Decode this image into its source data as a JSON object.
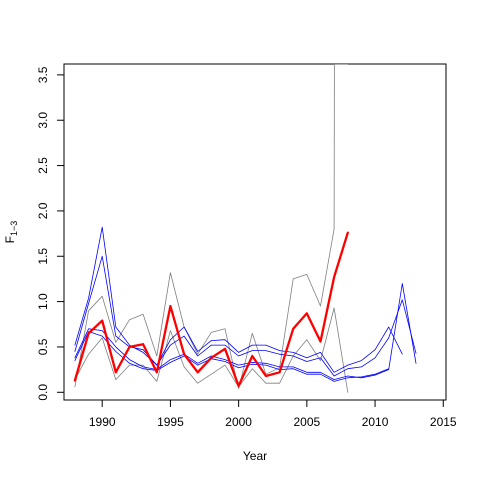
{
  "chart_data": {
    "type": "line",
    "xlabel": "Year",
    "ylabel_main": "F",
    "ylabel_sub": "1−3",
    "xlim": [
      1987.2,
      2015.2
    ],
    "ylim": [
      -0.085,
      3.62
    ],
    "xticks": [
      "1990",
      "1995",
      "2000",
      "2005",
      "2010",
      "2015"
    ],
    "xtick_values": [
      1990,
      1995,
      2000,
      2005,
      2010,
      2015
    ],
    "yticks": [
      "0.0",
      "0.5",
      "1.0",
      "1.5",
      "2.0",
      "2.5",
      "3.0",
      "3.5"
    ],
    "ytick_values": [
      0,
      0.5,
      1,
      1.5,
      2,
      2.5,
      3,
      3.5
    ],
    "colors": {
      "gray": "#7f7f7f",
      "blue": "#0000ff",
      "red": "#ff0000"
    },
    "series": [
      {
        "color": "gray",
        "width": 0.8,
        "x": [
          1988,
          1989,
          1990,
          1991,
          1992,
          1993,
          1994,
          1995,
          1996,
          1997,
          1998,
          1999,
          2000,
          2001,
          2002,
          2003,
          2004,
          2005,
          2006,
          2007,
          2007.02,
          2008
        ],
        "y": [
          0.06,
          0.9,
          1.06,
          0.55,
          0.8,
          0.86,
          0.4,
          1.32,
          0.72,
          0.42,
          0.66,
          0.7,
          0.04,
          0.65,
          0.2,
          0.27,
          1.25,
          1.3,
          0.95,
          1.8,
          3.62,
          3.62
        ]
      },
      {
        "color": "gray",
        "width": 0.8,
        "x": [
          1988,
          1989,
          1990,
          1991,
          1992,
          1993,
          1994,
          1995,
          1996,
          1997,
          1998,
          1999,
          2000,
          2001,
          2002,
          2003,
          2004,
          2005,
          2006,
          2007,
          2008
        ],
        "y": [
          0.14,
          0.42,
          0.6,
          0.14,
          0.3,
          0.3,
          0.12,
          0.68,
          0.28,
          0.1,
          0.2,
          0.3,
          0.06,
          0.26,
          0.1,
          0.1,
          0.4,
          0.58,
          0.35,
          0.93,
          0.0
        ]
      },
      {
        "color": "blue",
        "width": 0.8,
        "x": [
          1988,
          1989,
          1990,
          1991,
          1992,
          1993,
          1994,
          1995,
          1996,
          1997,
          1998,
          1999,
          2000,
          2001,
          2002,
          2003,
          2004,
          2005,
          2006,
          2007,
          2008,
          2009,
          2010,
          2011,
          2012
        ],
        "y": [
          0.52,
          1.04,
          1.82,
          0.72,
          0.52,
          0.44,
          0.3,
          0.58,
          0.72,
          0.45,
          0.57,
          0.58,
          0.44,
          0.52,
          0.52,
          0.46,
          0.44,
          0.38,
          0.44,
          0.22,
          0.3,
          0.35,
          0.47,
          0.72,
          0.42
        ]
      },
      {
        "color": "blue",
        "width": 0.8,
        "x": [
          1988,
          1989,
          1990,
          1991,
          1992,
          1993,
          1994,
          1995,
          1996,
          1997,
          1998,
          1999,
          2000,
          2001,
          2002,
          2003,
          2004,
          2005,
          2006,
          2007,
          2008,
          2009,
          2010,
          2011,
          2012,
          2013
        ],
        "y": [
          0.45,
          0.98,
          1.5,
          0.62,
          0.5,
          0.47,
          0.3,
          0.52,
          0.62,
          0.4,
          0.52,
          0.52,
          0.4,
          0.46,
          0.46,
          0.42,
          0.4,
          0.34,
          0.38,
          0.18,
          0.26,
          0.28,
          0.38,
          0.6,
          1.02,
          0.43
        ]
      },
      {
        "color": "blue",
        "width": 0.8,
        "x": [
          1988,
          1989,
          1990,
          1991,
          1992,
          1993,
          1994,
          1995,
          1996,
          1997,
          1998,
          1999,
          2000,
          2001,
          2002,
          2003,
          2004,
          2005,
          2006,
          2007,
          2008,
          2009,
          2010,
          2011,
          2012,
          2013
        ],
        "y": [
          0.38,
          0.7,
          0.68,
          0.5,
          0.36,
          0.28,
          0.25,
          0.36,
          0.42,
          0.32,
          0.4,
          0.36,
          0.3,
          0.33,
          0.32,
          0.28,
          0.28,
          0.22,
          0.22,
          0.14,
          0.18,
          0.16,
          0.19,
          0.25,
          1.2,
          0.32
        ]
      },
      {
        "color": "blue",
        "width": 0.8,
        "x": [
          1988,
          1989,
          1990,
          1991,
          1992,
          1993,
          1994,
          1995,
          1996,
          1997,
          1998,
          1999,
          2000,
          2001,
          2002,
          2003,
          2004,
          2005,
          2006,
          2007,
          2008,
          2009,
          2010,
          2011
        ],
        "y": [
          0.35,
          0.67,
          0.62,
          0.45,
          0.32,
          0.26,
          0.24,
          0.33,
          0.4,
          0.3,
          0.37,
          0.34,
          0.27,
          0.31,
          0.3,
          0.25,
          0.26,
          0.2,
          0.2,
          0.12,
          0.16,
          0.17,
          0.2,
          0.26
        ]
      },
      {
        "color": "red",
        "width": 2.3,
        "x": [
          1988,
          1989,
          1990,
          1991,
          1992,
          1993,
          1994,
          1995,
          1996,
          1997,
          1998,
          1999,
          2000,
          2001,
          2002,
          2003,
          2004,
          2005,
          2006,
          2007,
          2008
        ],
        "y": [
          0.13,
          0.65,
          0.79,
          0.22,
          0.5,
          0.53,
          0.22,
          0.95,
          0.42,
          0.22,
          0.38,
          0.48,
          0.07,
          0.4,
          0.18,
          0.22,
          0.7,
          0.87,
          0.56,
          1.27,
          1.76
        ]
      }
    ]
  }
}
